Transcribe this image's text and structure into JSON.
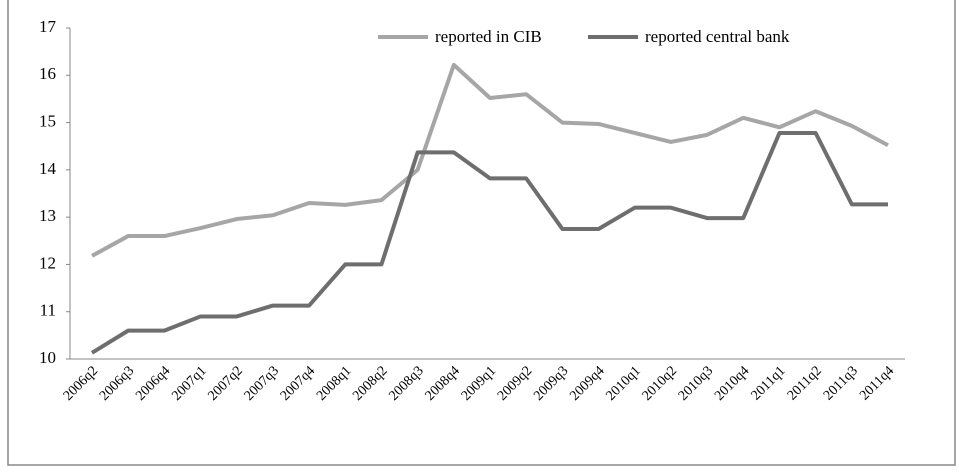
{
  "chart_data": {
    "type": "line",
    "categories": [
      "2006q2",
      "2006q3",
      "2006q4",
      "2007q1",
      "2007q2",
      "2007q3",
      "2007q4",
      "2008q1",
      "2008q2",
      "2008q3",
      "2008q4",
      "2009q1",
      "2009q2",
      "2009q3",
      "2009q4",
      "2010q1",
      "2010q2",
      "2010q3",
      "2010q4",
      "2011q1",
      "2011q2",
      "2011q3",
      "2011q4"
    ],
    "series": [
      {
        "name": "reported in CIB",
        "color": "#a6a6a6",
        "values": [
          12.18,
          12.6,
          12.6,
          12.77,
          12.96,
          13.04,
          13.3,
          13.26,
          13.36,
          14.0,
          16.22,
          15.52,
          15.6,
          15.0,
          14.97,
          14.78,
          14.59,
          14.74,
          15.1,
          14.9,
          15.24,
          14.93,
          14.52
        ]
      },
      {
        "name": "reported central bank",
        "color": "#6e6e6e",
        "values": [
          10.13,
          10.6,
          10.6,
          10.9,
          10.9,
          11.13,
          11.13,
          12.0,
          12.0,
          14.37,
          14.37,
          13.82,
          13.82,
          12.75,
          12.75,
          13.2,
          13.2,
          12.98,
          12.98,
          14.78,
          14.78,
          13.27,
          13.27
        ]
      }
    ],
    "ylim": [
      10,
      17
    ],
    "yticks": [
      10,
      11,
      12,
      13,
      14,
      15,
      16,
      17
    ],
    "legend": "top"
  }
}
